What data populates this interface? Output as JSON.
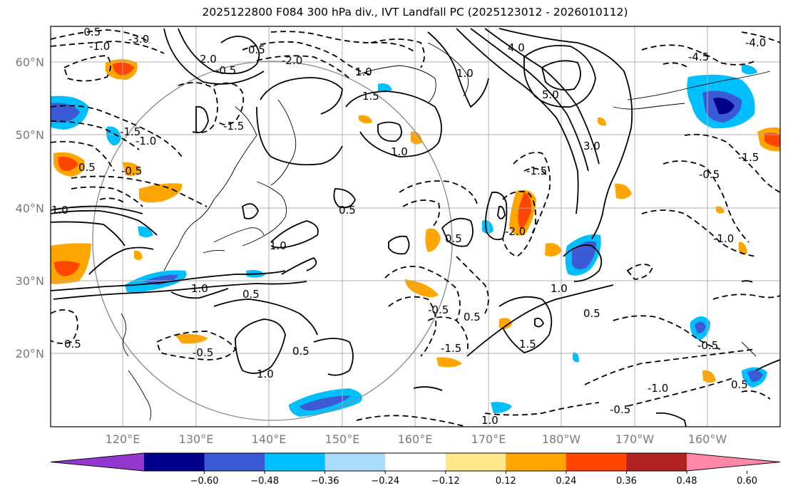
{
  "title": "2025122800 F084 300 hPa div., IVT Landfall PC (2025123012 - 2026010112)",
  "lat_labels": [
    "60°N",
    "50°N",
    "40°N",
    "30°N",
    "20°N"
  ],
  "lon_labels": [
    "120°E",
    "130°E",
    "140°E",
    "150°E",
    "160°E",
    "170°E",
    "180°W",
    "170°W",
    "160°W"
  ],
  "contour_labels": [
    "0.5",
    "-0.5",
    "-1.0",
    "-1.5",
    "-2.0",
    "-3.0",
    "1.0",
    "1.5",
    "2.0",
    "3.0",
    "4.0",
    "5.0",
    "-4.0",
    "-4.5"
  ],
  "colorbar": {
    "ticks": [
      "−0.60",
      "−0.48",
      "−0.36",
      "−0.24",
      "−0.12",
      "0.12",
      "0.24",
      "0.36",
      "0.48",
      "0.60"
    ],
    "colors": [
      "#9437cf",
      "#00008b",
      "#3b5bd6",
      "#00bfff",
      "#abdcf9",
      "#ffffff",
      "#ffe98c",
      "#ffa500",
      "#ff4500",
      "#b22222",
      "#ff88a8"
    ]
  }
}
